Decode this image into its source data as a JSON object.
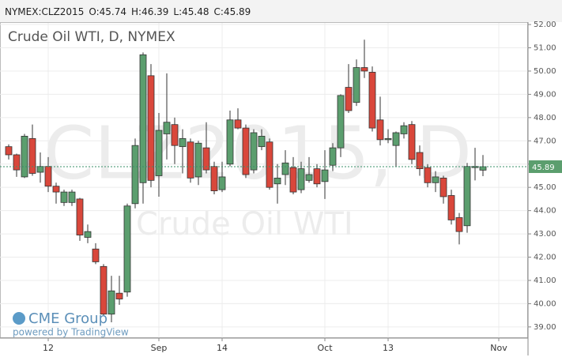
{
  "header": {
    "symbol": "NYMEX:CLZ2015",
    "ohlc": [
      {
        "label": "O:",
        "value": 45.74
      },
      {
        "label": "H:",
        "value": 46.39
      },
      {
        "label": "L:",
        "value": 45.48
      },
      {
        "label": "C:",
        "value": 45.89
      }
    ]
  },
  "chart_data": {
    "type": "candlestick",
    "title": "Crude Oil WTI, D, NYMEX",
    "watermark": [
      "CLZ2015, D",
      "Crude Oil WTI"
    ],
    "logo": {
      "name": "CME Group",
      "tagline": "powered by TradingView"
    },
    "up_color": "#5b9e6e",
    "down_color": "#d9473b",
    "grid": true,
    "categories": [
      null,
      null,
      null,
      null,
      null,
      "12",
      null,
      null,
      null,
      null,
      null,
      null,
      null,
      null,
      null,
      null,
      null,
      null,
      null,
      "Sep",
      null,
      null,
      null,
      null,
      null,
      null,
      null,
      "14",
      null,
      null,
      null,
      null,
      null,
      null,
      null,
      null,
      null,
      null,
      null,
      null,
      "Oct",
      null,
      null,
      null,
      null,
      null,
      null,
      null,
      "13",
      null,
      null,
      null,
      null,
      null,
      null,
      null,
      null,
      null,
      null,
      null,
      null,
      null,
      "Nov",
      null
    ],
    "open": [
      46.75,
      46.4,
      45.45,
      47.1,
      45.65,
      45.9,
      45.05,
      44.35,
      44.35,
      44.5,
      42.85,
      42.35,
      41.6,
      39.55,
      40.45,
      40.5,
      44.3,
      45.2,
      49.8,
      45.5,
      47.3,
      47.7,
      46.75,
      46.95,
      45.45,
      46.7,
      45.9,
      44.9,
      46.0,
      47.9,
      47.55,
      45.75,
      46.75,
      46.95,
      45.15,
      45.55,
      45.85,
      44.9,
      45.3,
      45.8,
      45.25,
      45.95,
      46.7,
      49.3,
      48.65,
      50.15,
      49.95,
      47.9,
      47.05,
      46.8,
      47.3,
      47.7,
      46.5,
      45.85,
      45.2,
      45.4,
      44.65,
      43.7,
      43.35,
      45.85,
      45.74,
      null,
      null,
      null
    ],
    "high": [
      46.85,
      46.45,
      47.3,
      47.7,
      46.5,
      46.3,
      45.2,
      44.9,
      44.9,
      44.55,
      43.4,
      42.6,
      41.7,
      41.2,
      41.2,
      44.3,
      47.1,
      50.8,
      50.3,
      48.2,
      49.9,
      48.0,
      47.5,
      47.1,
      47.0,
      47.8,
      46.1,
      46.1,
      48.3,
      48.4,
      47.7,
      47.5,
      47.5,
      47.1,
      46.0,
      46.6,
      46.3,
      46.1,
      46.3,
      46.0,
      46.6,
      46.9,
      49.0,
      50.3,
      50.5,
      51.35,
      50.2,
      48.9,
      47.5,
      47.4,
      47.8,
      47.85,
      46.8,
      46.0,
      45.7,
      45.5,
      44.9,
      43.9,
      46.05,
      46.7,
      46.39,
      null,
      null,
      null
    ],
    "low": [
      46.2,
      45.45,
      45.4,
      45.5,
      45.2,
      44.8,
      44.3,
      44.2,
      44.2,
      42.7,
      42.6,
      41.7,
      39.5,
      39.2,
      39.95,
      40.3,
      44.1,
      44.3,
      45.0,
      44.6,
      46.2,
      46.0,
      45.6,
      45.2,
      45.1,
      45.6,
      44.7,
      44.8,
      45.9,
      47.5,
      45.4,
      45.6,
      46.6,
      44.9,
      44.3,
      45.1,
      44.7,
      44.75,
      45.2,
      45.0,
      44.5,
      45.7,
      46.3,
      48.2,
      48.5,
      49.7,
      47.4,
      46.8,
      46.9,
      45.9,
      47.1,
      46.0,
      45.5,
      45.0,
      44.8,
      44.3,
      43.4,
      42.55,
      43.05,
      45.3,
      45.48,
      null,
      null,
      null
    ],
    "close": [
      46.4,
      45.75,
      47.2,
      45.6,
      45.9,
      45.05,
      44.8,
      44.8,
      44.8,
      42.95,
      43.1,
      41.8,
      39.55,
      40.55,
      40.2,
      44.2,
      46.8,
      50.7,
      45.3,
      47.45,
      47.8,
      46.8,
      47.1,
      45.4,
      46.9,
      45.75,
      44.85,
      45.45,
      47.9,
      47.55,
      45.55,
      47.35,
      47.2,
      45.0,
      45.4,
      46.05,
      44.8,
      45.8,
      45.55,
      45.15,
      45.75,
      46.7,
      48.95,
      48.3,
      50.15,
      50.0,
      47.55,
      47.05,
      47.1,
      47.35,
      47.65,
      46.2,
      45.8,
      45.2,
      45.45,
      44.6,
      43.6,
      43.1,
      45.9,
      45.9,
      45.89,
      null,
      null,
      null
    ],
    "ylim": [
      38.52,
      52.07
    ],
    "yticks": [
      {
        "value": 39,
        "label": "39.00"
      },
      {
        "value": 40,
        "label": "40.00"
      },
      {
        "value": 41,
        "label": "41.00"
      },
      {
        "value": 42,
        "label": "42.00"
      },
      {
        "value": 43,
        "label": "43.00"
      },
      {
        "value": 44,
        "label": "44.00"
      },
      {
        "value": 45,
        "label": "45.00"
      },
      {
        "value": 46,
        "label": "46.00"
      },
      {
        "value": 47,
        "label": "47.00"
      },
      {
        "value": 48,
        "label": "48.00"
      },
      {
        "value": 49,
        "label": "49.00"
      },
      {
        "value": 50,
        "label": "50.00"
      },
      {
        "value": 51,
        "label": "51.00"
      },
      {
        "value": 52,
        "label": "52.00"
      }
    ]
  }
}
